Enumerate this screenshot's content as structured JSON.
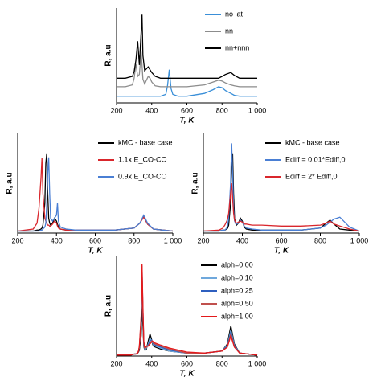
{
  "chart_data": [
    {
      "type": "line",
      "xlabel": "T, K",
      "ylabel": "R, a.u",
      "legend": "upper right",
      "xlim": [
        200,
        1000
      ],
      "xticks": [
        200,
        400,
        600,
        800,
        {
          "value": 1000,
          "label": "1 000"
        }
      ],
      "ylim": [
        0,
        10
      ],
      "x": [
        200,
        250,
        290,
        300,
        310,
        320,
        330,
        340,
        345,
        350,
        360,
        380,
        390,
        400,
        420,
        450,
        480,
        490,
        500,
        510,
        520,
        550,
        600,
        700,
        750,
        780,
        800,
        820,
        850,
        870,
        900,
        950,
        1000
      ],
      "series": [
        {
          "name": "no lat",
          "color": "#3a8fd8",
          "values": [
            0.7,
            0.7,
            0.7,
            0.7,
            0.7,
            0.7,
            0.7,
            0.7,
            0.7,
            0.7,
            0.7,
            0.7,
            0.7,
            0.7,
            0.7,
            0.7,
            0.9,
            1.8,
            3.5,
            1.5,
            0.9,
            0.7,
            0.7,
            1.0,
            1.4,
            1.7,
            1.6,
            1.3,
            1.0,
            0.8,
            0.7,
            0.7,
            0.7
          ]
        },
        {
          "name": "nn",
          "color": "#8c8c8c",
          "values": [
            1.7,
            1.7,
            1.9,
            2.6,
            4.1,
            2.8,
            3.0,
            5.4,
            4.0,
            2.5,
            2.0,
            2.8,
            2.6,
            2.2,
            1.8,
            1.7,
            1.7,
            1.7,
            1.7,
            1.7,
            1.7,
            1.7,
            1.7,
            1.9,
            2.2,
            2.4,
            2.3,
            2.1,
            1.9,
            1.8,
            1.7,
            1.7,
            1.7
          ]
        },
        {
          "name": "nn+nnn",
          "color": "#000000",
          "values": [
            2.6,
            2.6,
            2.8,
            3.3,
            4.5,
            6.5,
            4.0,
            7.5,
            9.3,
            5.0,
            3.4,
            3.8,
            3.5,
            3.2,
            2.8,
            2.6,
            2.6,
            2.6,
            2.6,
            2.6,
            2.6,
            2.6,
            2.6,
            2.6,
            2.6,
            2.6,
            2.8,
            3.0,
            3.2,
            2.9,
            2.6,
            2.6,
            2.6
          ]
        }
      ]
    },
    {
      "type": "line",
      "xlabel": "T, K",
      "ylabel": "R, a.u",
      "legend": "upper right",
      "xlim": [
        200,
        1000
      ],
      "xticks": [
        200,
        400,
        600,
        800,
        {
          "value": 1000,
          "label": "1 000"
        }
      ],
      "ylim": [
        0,
        10
      ],
      "x": [
        200,
        280,
        300,
        310,
        320,
        325,
        330,
        340,
        345,
        350,
        355,
        360,
        365,
        370,
        380,
        390,
        400,
        405,
        410,
        420,
        450,
        500,
        600,
        700,
        800,
        830,
        850,
        870,
        900,
        950,
        1000
      ],
      "series": [
        {
          "name": "kMC - base case",
          "color": "#000000",
          "values": [
            0.2,
            0.2,
            0.3,
            0.3,
            0.4,
            0.5,
            0.8,
            3.0,
            7.0,
            8.0,
            4.0,
            1.5,
            1.0,
            0.8,
            1.0,
            1.5,
            1.2,
            0.9,
            0.6,
            0.4,
            0.3,
            0.3,
            0.3,
            0.3,
            0.5,
            1.0,
            1.7,
            0.9,
            0.4,
            0.3,
            0.2
          ]
        },
        {
          "name": "1.1x E_CO-CO",
          "color": "#d9262c",
          "values": [
            0.2,
            0.4,
            1.0,
            2.5,
            5.5,
            7.5,
            4.0,
            1.5,
            1.2,
            1.0,
            0.8,
            0.8,
            0.7,
            0.7,
            0.9,
            1.2,
            1.0,
            0.7,
            0.5,
            0.4,
            0.3,
            0.3,
            0.3,
            0.3,
            0.5,
            1.0,
            1.6,
            0.9,
            0.4,
            0.3,
            0.2
          ]
        },
        {
          "name": "0.9x E_CO-CO",
          "color": "#4a7fd4",
          "values": [
            0.2,
            0.2,
            0.2,
            0.2,
            0.3,
            0.3,
            0.4,
            0.6,
            1.0,
            3.0,
            6.0,
            7.6,
            4.0,
            1.5,
            1.2,
            1.5,
            1.8,
            3.0,
            1.2,
            0.6,
            0.4,
            0.3,
            0.3,
            0.3,
            0.5,
            1.0,
            1.8,
            1.0,
            0.4,
            0.3,
            0.2
          ]
        }
      ]
    },
    {
      "type": "line",
      "xlabel": "T, K",
      "ylabel": "R, a.u",
      "legend": "upper right",
      "xlim": [
        200,
        1000
      ],
      "xticks": [
        200,
        400,
        600,
        800,
        {
          "value": 1000,
          "label": "1 000"
        }
      ],
      "ylim": [
        0,
        10
      ],
      "x": [
        200,
        280,
        300,
        310,
        320,
        325,
        330,
        340,
        345,
        350,
        355,
        360,
        365,
        370,
        380,
        390,
        400,
        405,
        410,
        420,
        450,
        500,
        600,
        700,
        800,
        830,
        850,
        870,
        900,
        950,
        1000
      ],
      "series": [
        {
          "name": "kMC - base case",
          "color": "#000000",
          "values": [
            0.2,
            0.2,
            0.3,
            0.3,
            0.4,
            0.5,
            0.8,
            3.0,
            7.0,
            8.0,
            4.0,
            1.5,
            1.0,
            0.8,
            1.0,
            1.5,
            1.2,
            0.9,
            0.6,
            0.4,
            0.3,
            0.3,
            0.3,
            0.3,
            0.5,
            1.0,
            1.3,
            0.9,
            0.4,
            0.3,
            0.2
          ]
        },
        {
          "name": "Ediff = 0.01*Ediff,0",
          "color": "#4a7fd4",
          "values": [
            0.2,
            0.2,
            0.3,
            0.3,
            0.5,
            0.8,
            1.5,
            5.0,
            9.0,
            6.0,
            2.5,
            1.2,
            1.0,
            0.9,
            1.0,
            1.3,
            1.1,
            0.9,
            0.7,
            0.5,
            0.4,
            0.3,
            0.3,
            0.3,
            0.5,
            0.8,
            1.1,
            1.4,
            1.6,
            0.6,
            0.2
          ]
        },
        {
          "name": "Ediff = 2* Ediff,0",
          "color": "#d9262c",
          "values": [
            0.2,
            0.3,
            0.5,
            0.8,
            1.2,
            1.5,
            2.0,
            4.0,
            5.0,
            3.5,
            2.0,
            1.3,
            1.1,
            1.0,
            1.1,
            1.2,
            1.1,
            1.0,
            0.9,
            0.9,
            0.8,
            0.8,
            0.7,
            0.7,
            0.8,
            1.0,
            1.2,
            0.9,
            0.7,
            0.4,
            0.2
          ]
        }
      ]
    },
    {
      "type": "line",
      "xlabel": "T, K",
      "ylabel": "R, a.u",
      "legend": "upper right",
      "xlim": [
        200,
        1000
      ],
      "xticks": [
        200,
        400,
        600,
        800,
        {
          "value": 1000,
          "label": "1 000"
        }
      ],
      "ylim": [
        0,
        10
      ],
      "x": [
        200,
        280,
        300,
        310,
        320,
        325,
        330,
        340,
        345,
        350,
        355,
        360,
        365,
        370,
        380,
        390,
        400,
        405,
        410,
        420,
        450,
        500,
        600,
        700,
        800,
        830,
        850,
        870,
        900,
        950,
        1000
      ],
      "series": [
        {
          "name": "alph=0.00",
          "color": "#000000",
          "values": [
            0.1,
            0.1,
            0.2,
            0.2,
            0.3,
            0.4,
            0.6,
            2.0,
            5.0,
            3.0,
            1.0,
            0.6,
            0.6,
            0.7,
            1.5,
            2.2,
            1.6,
            1.2,
            1.0,
            0.9,
            0.7,
            0.5,
            0.3,
            0.3,
            0.5,
            1.2,
            3.0,
            1.2,
            0.3,
            0.2,
            0.1
          ]
        },
        {
          "name": "alph=0.10",
          "color": "#6fa8dc",
          "values": [
            0.1,
            0.1,
            0.2,
            0.2,
            0.3,
            0.5,
            0.8,
            3.0,
            7.0,
            4.0,
            1.2,
            0.7,
            0.7,
            0.8,
            1.2,
            1.8,
            1.5,
            1.3,
            1.1,
            1.0,
            0.8,
            0.5,
            0.3,
            0.3,
            0.5,
            1.1,
            2.6,
            1.1,
            0.3,
            0.2,
            0.1
          ]
        },
        {
          "name": "alph=0.25",
          "color": "#2e5fbf",
          "values": [
            0.1,
            0.1,
            0.2,
            0.2,
            0.3,
            0.5,
            0.9,
            3.5,
            9.0,
            4.5,
            1.3,
            0.8,
            0.8,
            0.9,
            1.1,
            1.5,
            1.6,
            1.4,
            1.2,
            1.1,
            0.9,
            0.6,
            0.3,
            0.3,
            0.5,
            1.0,
            2.4,
            1.0,
            0.3,
            0.2,
            0.1
          ]
        },
        {
          "name": "alph=0.50",
          "color": "#c0504d",
          "values": [
            0.1,
            0.1,
            0.2,
            0.2,
            0.3,
            0.5,
            0.9,
            3.5,
            8.5,
            4.5,
            1.3,
            0.8,
            0.8,
            0.9,
            1.0,
            1.3,
            1.5,
            1.4,
            1.3,
            1.2,
            1.0,
            0.7,
            0.3,
            0.3,
            0.5,
            0.9,
            2.2,
            0.9,
            0.3,
            0.2,
            0.1
          ]
        },
        {
          "name": "alph=1.00",
          "color": "#e31a1c",
          "values": [
            0.1,
            0.1,
            0.2,
            0.2,
            0.3,
            0.5,
            1.0,
            4.0,
            9.2,
            5.0,
            1.5,
            0.9,
            0.9,
            1.0,
            1.0,
            1.2,
            1.4,
            1.5,
            1.4,
            1.3,
            1.1,
            0.8,
            0.4,
            0.3,
            0.5,
            0.9,
            2.0,
            0.9,
            0.3,
            0.2,
            0.1
          ]
        }
      ]
    }
  ]
}
